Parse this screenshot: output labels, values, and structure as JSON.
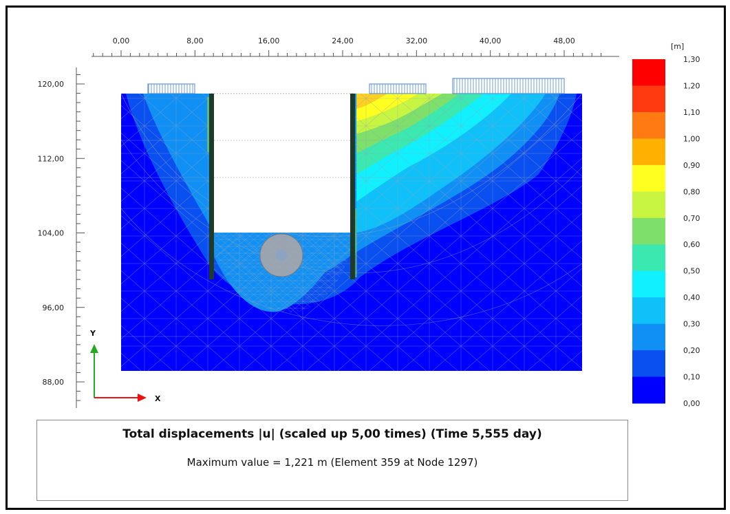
{
  "figure": {
    "caption_title": "Total displacements |u| (scaled up 5,00 times) (Time 5,555 day)",
    "caption_subtitle": "Maximum value = 1,221 m (Element 359 at Node 1297)"
  },
  "axes": {
    "x_label": "X",
    "y_label": "Y",
    "x_ticks": [
      "0,00",
      "8,00",
      "16,00",
      "24,00",
      "32,00",
      "40,00",
      "48,00"
    ],
    "x_tick_values": [
      0,
      8,
      16,
      24,
      32,
      40,
      48
    ],
    "y_ticks": [
      "120,00",
      "112,00",
      "104,00",
      "96,00",
      "88,00"
    ],
    "y_tick_values": [
      120,
      112,
      104,
      96,
      88
    ],
    "x_range": [
      -3,
      52
    ],
    "y_range": [
      86,
      124
    ]
  },
  "legend": {
    "unit": "[m]",
    "labels": [
      "1,30",
      "1,20",
      "1,10",
      "1,00",
      "0,90",
      "0,80",
      "0,70",
      "0,60",
      "0,50",
      "0,40",
      "0,30",
      "0,20",
      "0,10",
      "0,00"
    ],
    "colors": [
      "#ff0000",
      "#ff3a10",
      "#ff7a12",
      "#ffb000",
      "#ffff20",
      "#c8f542",
      "#7ee06a",
      "#3ae8b0",
      "#10f0ff",
      "#10c0f8",
      "#1090f4",
      "#0a50f0",
      "#0000ff"
    ]
  },
  "colors": {
    "soil_base": "#0000ff",
    "wall": "#1e3a28",
    "axis_y": "#22aa22",
    "axis_x": "#ee1111"
  }
}
